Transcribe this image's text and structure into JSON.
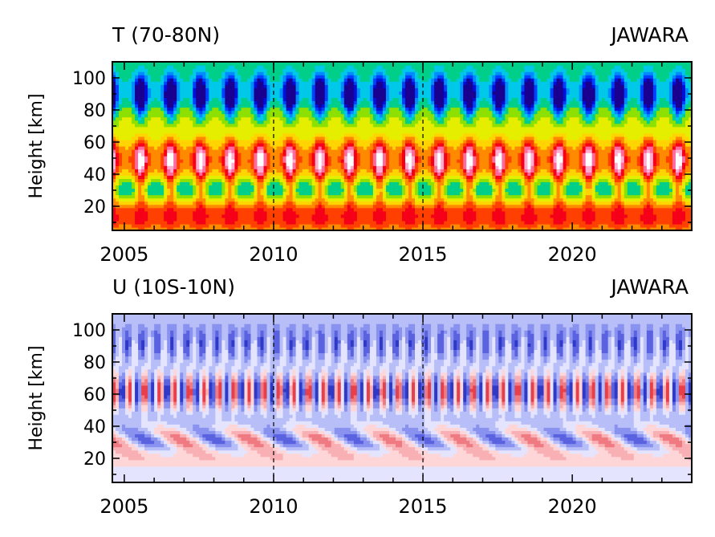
{
  "chart_data": [
    {
      "type": "heatmap",
      "title": "T (70-80N)",
      "model": "JAWARA",
      "xlabel": "",
      "ylabel": "Height  [km]",
      "xlim": [
        2004.6,
        2024.0
      ],
      "ylim": [
        5,
        110
      ],
      "xticks": [
        2005,
        2010,
        2015,
        2020
      ],
      "xtick_labels": [
        "2005",
        "2010",
        "2015",
        "2020"
      ],
      "yticks": [
        20,
        40,
        60,
        80,
        100
      ],
      "ytick_labels": [
        "20",
        "40",
        "60",
        "80",
        "100"
      ],
      "dashed_vlines": [
        2010,
        2015
      ],
      "colors": [
        "#ffffff",
        "#ffaed2",
        "#ff6aa0",
        "#f50018",
        "#ff4000",
        "#ff8a00",
        "#ffd400",
        "#e6ee00",
        "#8ee000",
        "#00cf8a",
        "#00c8e8",
        "#008cff",
        "#0040ff",
        "#0010d8",
        "#1a0090"
      ]
    },
    {
      "type": "heatmap",
      "title": "U (10S-10N)",
      "model": "JAWARA",
      "xlabel": "",
      "ylabel": "Height  [km]",
      "xlim": [
        2004.6,
        2024.0
      ],
      "ylim": [
        5,
        110
      ],
      "xticks": [
        2005,
        2010,
        2015,
        2020
      ],
      "xtick_labels": [
        "2005",
        "2010",
        "2015",
        "2020"
      ],
      "yticks": [
        20,
        40,
        60,
        80,
        100
      ],
      "ytick_labels": [
        "20",
        "40",
        "60",
        "80",
        "100"
      ],
      "dashed_vlines": [
        2010,
        2015
      ],
      "colors": [
        "#e8404a",
        "#f07a82",
        "#f8b0b4",
        "#ffd6d8",
        "#e4e4ff",
        "#b8bef8",
        "#8a92f0",
        "#5a62e0",
        "#3038c8"
      ]
    }
  ]
}
